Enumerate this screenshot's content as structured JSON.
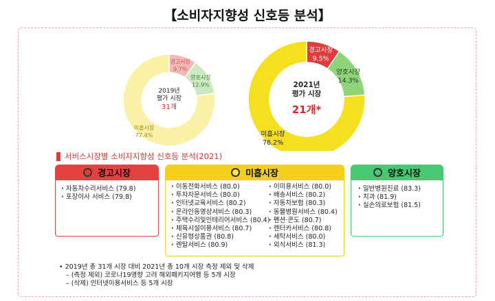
{
  "title": "【소비자지향성 신호등 분석】",
  "colors": {
    "warning": "#e23b3b",
    "insufficient": "#f8e84a",
    "good": "#8fd37a",
    "warning_light": "#f4b9b4",
    "insufficient_light": "#fbf1a6",
    "good_light": "#cbe9c0",
    "warning_panel": "#e44141",
    "insufficient_panel": "#f4cf1d",
    "good_panel": "#46c972"
  },
  "chart_data": [
    {
      "type": "pie",
      "variant": "donut",
      "center_title": "2019년 평가 시장",
      "center_count": "31개",
      "slices": [
        {
          "label": "경고시장",
          "value": 9.7,
          "value_label": "9.7%",
          "color": "#f4b9b4"
        },
        {
          "label": "양호시장",
          "value": 12.9,
          "value_label": "12.9%",
          "color": "#cbe9c0"
        },
        {
          "label": "미흡시장",
          "value": 77.4,
          "value_label": "77.4%",
          "color": "#fbf1a6"
        }
      ]
    },
    {
      "type": "pie",
      "variant": "donut",
      "center_title": "2021년 평가 시장",
      "center_count": "21개*",
      "slices": [
        {
          "label": "경고시장",
          "value": 9.5,
          "value_label": "9.5%",
          "color": "#e23b3b"
        },
        {
          "label": "양호시장",
          "value": 14.3,
          "value_label": "14.3%",
          "color": "#8fd37a"
        },
        {
          "label": "미흡시장",
          "value": 76.2,
          "value_label": "76.2%",
          "color": "#f5df1f"
        }
      ]
    }
  ],
  "section_title": "서비스시장별 소비자지향성 신호등 분석(2021)",
  "panels": {
    "warning": {
      "header": "경고시장",
      "items": [
        "자동차수리서비스 (79.8)",
        "포장이사 서비스 (79.8)"
      ]
    },
    "insufficient": {
      "header": "미흡시장",
      "items_left": [
        "이동전화서비스 (80.0)",
        "투자자문서비스 (80.0)",
        "인터넷교육서비스 (80.2)",
        "온라인동영상서비스 (80.3)",
        "주택수리및인테리어서비스 (80.4)",
        "체육시설이용서비스 (80.7)",
        "신유형상품권 (80.8)",
        "렌탈서비스 (80.9)"
      ],
      "items_right": [
        "이미용서비스 (80.0)",
        "배송서비스 (80.2)",
        "자동차보험 (80.3)",
        "동물병원서비스 (80.4)",
        "펜션·콘도 (80.7)",
        "렌터카서비스 (80.8)",
        "세탁서비스 (80.0)",
        "외식서비스 (81.3)"
      ]
    },
    "good": {
      "header": "양호시장",
      "items": [
        "일반병원진료 (83.3)",
        "치과 (81.9)",
        "실손의료보험 (81.5)"
      ]
    }
  },
  "notes": [
    "•   2019년 총 31개 시장 대비 2021년 총 10개 시장 측정 제외 및 삭제",
    "– (측정 제외) 코로나19영향 고려 해외패키지여행 등 5개 시장",
    "– (삭제) 인터넷이용서비스 등 5개 시장"
  ]
}
